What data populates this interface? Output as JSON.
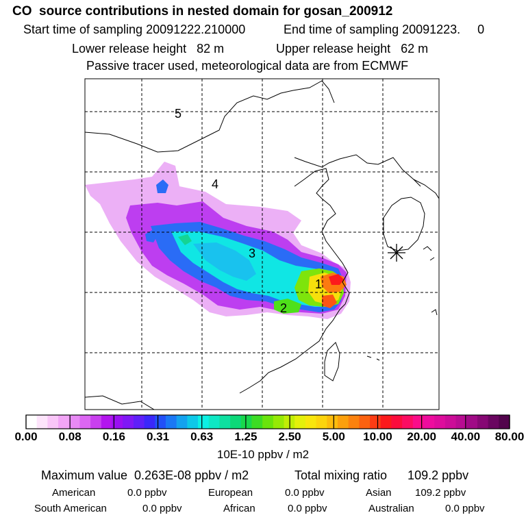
{
  "header": {
    "title": "CO  source contributions in nested domain for gosan_200912",
    "start_sampling": "Start time of sampling 20091222.210000",
    "end_sampling": "End time of sampling 20091223.     0",
    "lower_release": "Lower release height   82 m",
    "upper_release": "Upper release height   62 m",
    "tracer_note": "Passive tracer used, meteorological data are from ECMWF"
  },
  "map": {
    "region_labels": [
      "1",
      "2",
      "3",
      "4",
      "5"
    ],
    "receptor_marker": "gosan-receptor-star"
  },
  "colorbar": {
    "tick_labels": [
      "0.00",
      "0.08",
      "0.16",
      "0.31",
      "0.63",
      "1.25",
      "2.50",
      "5.00",
      "10.00",
      "20.00",
      "40.00",
      "80.00"
    ],
    "units": "10E-10 ppbv / m2",
    "colors": [
      "#ffffff",
      "#fde4fb",
      "#f9c6f8",
      "#f2a5f6",
      "#e88af5",
      "#dc66f3",
      "#c940ef",
      "#b315ee",
      "#9a10f2",
      "#7f18f5",
      "#5f20f8",
      "#3b28fa",
      "#2250f8",
      "#1a78f5",
      "#14a2ef",
      "#0ec8e8",
      "#0cf0e4",
      "#0ee8c4",
      "#0ee0a0",
      "#0cd878",
      "#18d84c",
      "#3cdc24",
      "#6ae40c",
      "#96ea06",
      "#c0ee06",
      "#e4f00a",
      "#f8e60c",
      "#fcd40c",
      "#fcbc0c",
      "#fca00c",
      "#fc820e",
      "#fc6210",
      "#fc3c14",
      "#fc1a1c",
      "#fc0c3c",
      "#fc0c62",
      "#fa0c8a",
      "#ee0c9e",
      "#de0c9c",
      "#cc0c98",
      "#b80c92",
      "#a00a86",
      "#860874",
      "#6a0660",
      "#52044c"
    ]
  },
  "summary": {
    "max_value": "Maximum value  0.263E-08 ppbv / m2",
    "total_mixing": "Total mixing ratio      109.2 ppbv",
    "sources": [
      {
        "label": "American",
        "value": "0.0 ppbv"
      },
      {
        "label": "European",
        "value": "0.0 ppbv"
      },
      {
        "label": "Asian",
        "value": "109.2 ppbv"
      },
      {
        "label": "South American",
        "value": "0.0 ppbv"
      },
      {
        "label": "African",
        "value": "0.0 ppbv"
      },
      {
        "label": "Australian",
        "value": "0.0 ppbv"
      }
    ]
  }
}
